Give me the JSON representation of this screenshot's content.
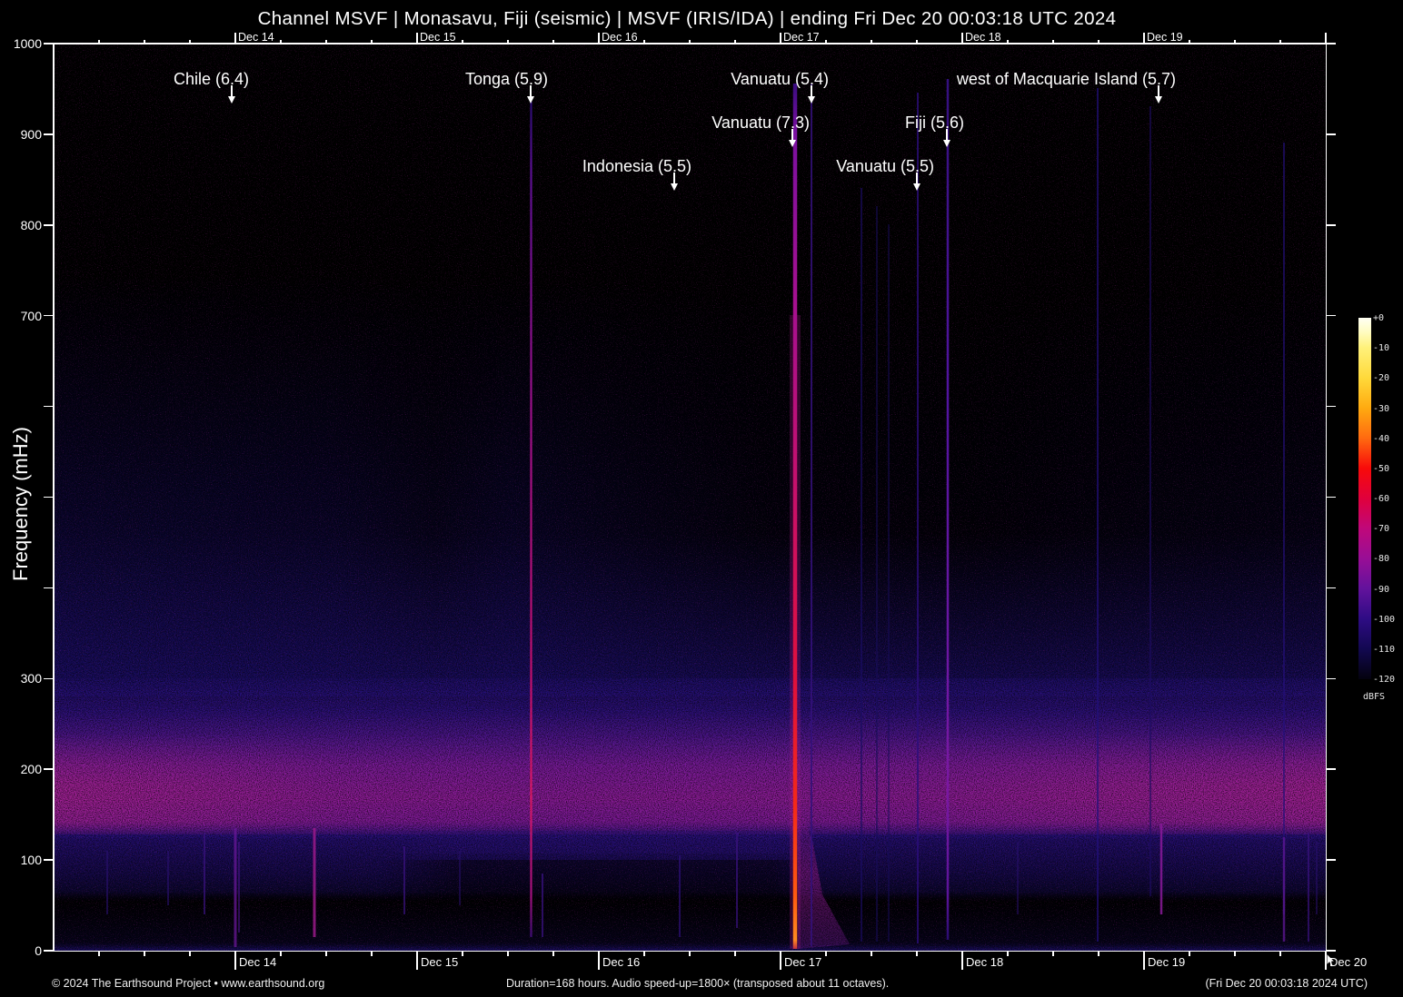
{
  "header": {
    "title": "Channel MSVF | Monasavu, Fiji (seismic) | MSVF (IRIS/IDA) | ending Fri Dec 20 00:03:18 UTC 2024"
  },
  "colorbar": {
    "unit": "dBFS",
    "ticks": [
      "+0",
      "-10",
      "-20",
      "-30",
      "-40",
      "-50",
      "-60",
      "-70",
      "-80",
      "-90",
      "-100",
      "-110",
      "-120"
    ],
    "colors": [
      "#fffff4",
      "#fff17a",
      "#ffd93a",
      "#ffaa10",
      "#ff6a10",
      "#f80a0a",
      "#e0003c",
      "#c0087a",
      "#980e96",
      "#62129c",
      "#2e0c84",
      "#120850",
      "#04020e"
    ]
  },
  "footer": {
    "copyright": "© 2024 The Earthsound Project • www.earthsound.org",
    "duration": "Duration=168 hours. Audio speed-up=1800× (transposed about 11 octaves).",
    "timestamp": "(Fri Dec 20 00:03:18 2024 UTC)"
  },
  "colors": {
    "background": "#000000",
    "axis": "#ffffff",
    "text": "#ffffff",
    "noise_band": "#8a1c9c",
    "strong_signal": "#f42a18"
  },
  "chart_data": {
    "type": "heatmap",
    "subtype": "spectrogram",
    "title": "Channel MSVF | Monasavu, Fiji (seismic) | MSVF (IRIS/IDA) | ending Fri Dec 20 00:03:18 UTC 2024",
    "xlabel": "",
    "ylabel": "Frequency (mHz)",
    "ylim": [
      0,
      1000
    ],
    "x_unit": "days since Dec 13 00:00 UTC",
    "duration_hours": 168,
    "end": "Fri Dec 20 00:03:18 UTC 2024",
    "grid": false,
    "legend": "colorbar on right (dBFS)",
    "color_scale": {
      "min": -120,
      "max": 0,
      "unit": "dBFS"
    },
    "y_axis": {
      "label": "Frequency (mHz)",
      "ticks": [
        {
          "value": 1000,
          "label": "1000"
        },
        {
          "value": 900,
          "label": "900"
        },
        {
          "value": 800,
          "label": "800"
        },
        {
          "value": 700,
          "label": "700"
        },
        {
          "value": 600,
          "label": ""
        },
        {
          "value": 500,
          "label": ""
        },
        {
          "value": 400,
          "label": ""
        },
        {
          "value": 300,
          "label": "300"
        },
        {
          "value": 200,
          "label": "200"
        },
        {
          "value": 100,
          "label": "100"
        },
        {
          "value": 0,
          "label": "0"
        }
      ]
    },
    "x_axis": {
      "minor_tick_hours": 6,
      "top_labels": [
        {
          "label": "Dec 14",
          "day": 1
        },
        {
          "label": "Dec 15",
          "day": 2
        },
        {
          "label": "Dec 16",
          "day": 3
        },
        {
          "label": "Dec 17",
          "day": 4
        },
        {
          "label": "Dec 18",
          "day": 5
        },
        {
          "label": "Dec 19",
          "day": 6
        }
      ],
      "bottom_labels": [
        {
          "label": "Dec 14",
          "day": 1
        },
        {
          "label": "Dec 15",
          "day": 2
        },
        {
          "label": "Dec 16",
          "day": 3
        },
        {
          "label": "Dec 17",
          "day": 4
        },
        {
          "label": "Dec 18",
          "day": 5
        },
        {
          "label": "Dec 19",
          "day": 6
        },
        {
          "label": "Dec 20",
          "day": 7
        }
      ]
    },
    "events": [
      {
        "label": "Chile (6.4)",
        "region": "Chile",
        "magnitude": 6.4,
        "day": 0.98,
        "approx_time": "Dec 13 ~23:30",
        "label_row": 1
      },
      {
        "label": "Tonga (5.9)",
        "region": "Tonga",
        "magnitude": 5.9,
        "day": 2.625,
        "approx_time": "Dec 15 ~15:00",
        "label_row": 1
      },
      {
        "label": "Indonesia (5.5)",
        "region": "Indonesia",
        "magnitude": 5.5,
        "day": 3.415,
        "approx_time": "Dec 16 ~10:00",
        "label_row": 3
      },
      {
        "label": "Vanuatu (7.3)",
        "region": "Vanuatu",
        "magnitude": 7.3,
        "day": 4.065,
        "approx_time": "Dec 17 ~01:30",
        "label_row": 2
      },
      {
        "label": "Vanuatu (5.4)",
        "region": "Vanuatu",
        "magnitude": 5.4,
        "day": 4.17,
        "approx_time": "Dec 17 ~04:00",
        "label_row": 1
      },
      {
        "label": "Vanuatu (5.5)",
        "region": "Vanuatu",
        "magnitude": 5.5,
        "day": 4.75,
        "approx_time": "Dec 17 ~18:00",
        "label_row": 3
      },
      {
        "label": "Fiji (5.6)",
        "region": "Fiji",
        "magnitude": 5.6,
        "day": 4.915,
        "approx_time": "Dec 17 ~22:00",
        "label_row": 2
      },
      {
        "label": "west of Macquarie Island (5.7)",
        "region": "west of Macquarie Island",
        "magnitude": 5.7,
        "day": 6.08,
        "approx_time": "Dec 19 ~02:00",
        "label_row": 1
      }
    ],
    "background_features": [
      {
        "description": "microseism noise band (strongest at start and end of window)",
        "f_range_mHz": [
          130,
          260
        ],
        "peak_mHz": 180,
        "level_dBFS": -80
      },
      {
        "description": "low-frequency noise floor",
        "f_range_mHz": [
          60,
          130
        ],
        "level_dBFS": -105
      },
      {
        "description": "faint diffuse noise (higher on Dec 13-15)",
        "f_range_mHz": [
          300,
          700
        ],
        "level_dBFS": -112
      }
    ],
    "signals": [
      {
        "event": "Tonga (5.9)",
        "day": 2.6275,
        "f_top": 935,
        "f_bottom": 15,
        "width": 2.2,
        "opacity": 1,
        "stops": [
          [
            935,
            "#2a0c70"
          ],
          [
            860,
            "#5a1092"
          ],
          [
            600,
            "#9a108a"
          ],
          [
            300,
            "#c0106c"
          ],
          [
            170,
            "#d21860"
          ],
          [
            60,
            "#a0107e"
          ],
          [
            15,
            "#3a0c70"
          ]
        ]
      },
      {
        "event": "Vanuatu (7.3) halo",
        "day": 4.08,
        "f_top": 700,
        "f_bottom": 2,
        "width": 12,
        "opacity": 0.28,
        "color": "#a0148a"
      },
      {
        "event": "Vanuatu (7.3)",
        "day": 4.08,
        "f_top": 955,
        "f_bottom": 2,
        "width": 4.5,
        "opacity": 1,
        "stops": [
          [
            955,
            "#3a0c80"
          ],
          [
            900,
            "#7a10a0"
          ],
          [
            700,
            "#a8108e"
          ],
          [
            500,
            "#c8106a"
          ],
          [
            300,
            "#e0103c"
          ],
          [
            160,
            "#f42a18"
          ],
          [
            60,
            "#ff5a10"
          ],
          [
            12,
            "#ff8a20"
          ],
          [
            2,
            "#c03040"
          ]
        ]
      },
      {
        "event": "Vanuatu (5.4)",
        "day": 4.17,
        "f_top": 955,
        "f_bottom": 5,
        "width": 2,
        "opacity": 0.85,
        "color": "#34107a"
      },
      {
        "event": "Vanuatu (5.5)",
        "day": 4.755,
        "f_top": 945,
        "f_bottom": 8,
        "width": 2,
        "opacity": 0.8,
        "color": "#2c0e7a"
      },
      {
        "event": "Fiji (5.6)",
        "day": 4.92,
        "f_top": 960,
        "f_bottom": 12,
        "width": 2.5,
        "opacity": 1,
        "stops": [
          [
            960,
            "#34107e"
          ],
          [
            600,
            "#5214a0"
          ],
          [
            180,
            "#7a18a2"
          ],
          [
            60,
            "#5a1498"
          ],
          [
            12,
            "#2a0c70"
          ]
        ]
      },
      {
        "event": "Chile (6.4)",
        "day": 1.0,
        "f_top": 135,
        "f_bottom": 4,
        "width": 3,
        "opacity": 0.75,
        "color": "#6a1898"
      },
      {
        "event": "Chile (6.4)",
        "day": 1.02,
        "f_top": 120,
        "f_bottom": 20,
        "width": 2,
        "opacity": 0.6,
        "color": "#4a1488"
      },
      {
        "event": "west of Macquarie Island (5.7)",
        "day": 6.095,
        "f_top": 140,
        "f_bottom": 40,
        "width": 2.5,
        "opacity": 0.85,
        "color": "#8a1a9a"
      },
      {
        "day": 6.035,
        "f_top": 930,
        "f_bottom": 60,
        "width": 2,
        "opacity": 0.6,
        "color": "#1e0c62"
      },
      {
        "day": 5.745,
        "f_top": 950,
        "f_bottom": 10,
        "width": 2,
        "opacity": 0.7,
        "color": "#22107a"
      },
      {
        "day": 6.77,
        "f_top": 890,
        "f_bottom": 40,
        "width": 2,
        "opacity": 0.65,
        "color": "#24107a"
      },
      {
        "day": 6.77,
        "f_top": 125,
        "f_bottom": 10,
        "width": 2.5,
        "opacity": 0.8,
        "color": "#5a1690"
      },
      {
        "day": 4.445,
        "f_top": 840,
        "f_bottom": 10,
        "width": 2,
        "opacity": 0.65,
        "color": "#1a0c62"
      },
      {
        "day": 4.53,
        "f_top": 820,
        "f_bottom": 10,
        "width": 2,
        "opacity": 0.55,
        "color": "#180c5a"
      },
      {
        "day": 4.595,
        "f_top": 800,
        "f_bottom": 10,
        "width": 2,
        "opacity": 0.5,
        "color": "#180c5a"
      },
      {
        "day": 1.435,
        "f_top": 135,
        "f_bottom": 15,
        "width": 3,
        "opacity": 0.85,
        "color": "#9a1a8a"
      },
      {
        "day": 0.83,
        "f_top": 130,
        "f_bottom": 40,
        "width": 2,
        "opacity": 0.7,
        "color": "#3a1280"
      },
      {
        "day": 0.295,
        "f_top": 110,
        "f_bottom": 40,
        "width": 2,
        "opacity": 0.6,
        "color": "#2a1070"
      },
      {
        "day": 0.63,
        "f_top": 110,
        "f_bottom": 50,
        "width": 2,
        "opacity": 0.6,
        "color": "#2a1070"
      },
      {
        "day": 1.93,
        "f_top": 115,
        "f_bottom": 40,
        "width": 2,
        "opacity": 0.7,
        "color": "#3a1280"
      },
      {
        "day": 2.235,
        "f_top": 110,
        "f_bottom": 50,
        "width": 2,
        "opacity": 0.5,
        "color": "#2a1070"
      },
      {
        "day": 2.69,
        "f_top": 85,
        "f_bottom": 15,
        "width": 2,
        "opacity": 0.75,
        "color": "#3a1280"
      },
      {
        "day": 3.445,
        "f_top": 105,
        "f_bottom": 15,
        "width": 2,
        "opacity": 0.7,
        "color": "#2e1078"
      },
      {
        "day": 3.76,
        "f_top": 130,
        "f_bottom": 25,
        "width": 2,
        "opacity": 0.7,
        "color": "#3a1280"
      },
      {
        "day": 5.305,
        "f_top": 120,
        "f_bottom": 40,
        "width": 2,
        "opacity": 0.5,
        "color": "#2a1070"
      },
      {
        "day": 6.905,
        "f_top": 130,
        "f_bottom": 10,
        "width": 2,
        "opacity": 0.7,
        "color": "#3a1280"
      },
      {
        "day": 6.95,
        "f_top": 120,
        "f_bottom": 40,
        "width": 2,
        "opacity": 0.5,
        "color": "#2a1070"
      }
    ]
  }
}
